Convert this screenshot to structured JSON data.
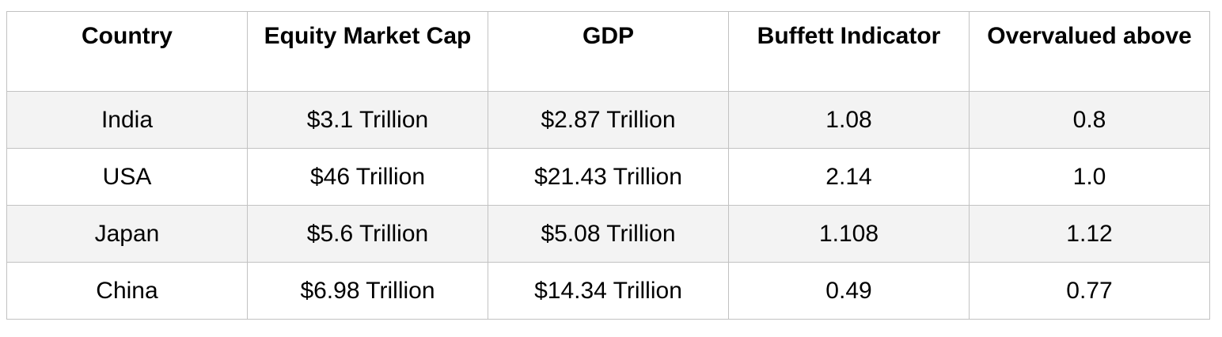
{
  "table": {
    "headers": [
      "Country",
      "Equity Market Cap",
      "GDP",
      "Buffett Indicator",
      "Overvalued above"
    ],
    "rows": [
      [
        "India",
        "$3.1 Trillion",
        "$2.87 Trillion",
        "1.08",
        "0.8"
      ],
      [
        "USA",
        "$46 Trillion",
        "$21.43 Trillion",
        "2.14",
        "1.0"
      ],
      [
        "Japan",
        "$5.6 Trillion",
        "$5.08 Trillion",
        "1.108",
        "1.12"
      ],
      [
        "China",
        "$6.98 Trillion",
        "$14.34 Trillion",
        "0.49",
        "0.77"
      ]
    ]
  },
  "colors": {
    "border": "#c2c2c2",
    "row_shade": "#f3f3f3"
  }
}
